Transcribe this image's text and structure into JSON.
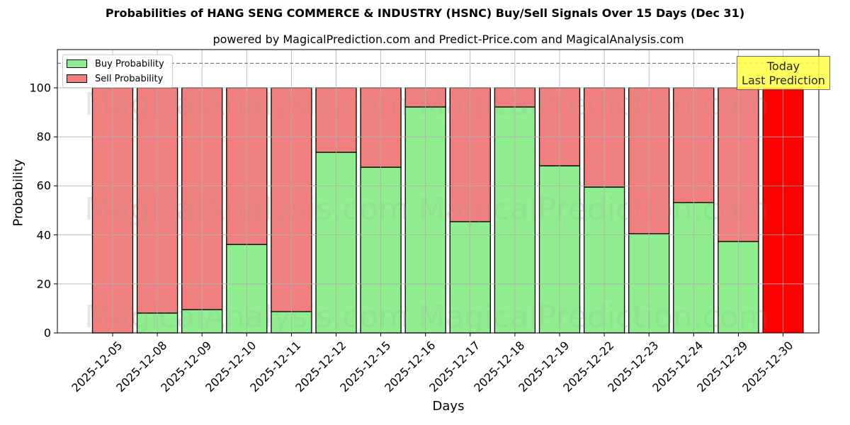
{
  "header": {
    "title": "Probabilities of HANG SENG COMMERCE & INDUSTRY (HSNC) Buy/Sell Signals Over 15 Days (Dec 31)",
    "subtitle": "powered by MagicalPrediction.com and Predict-Price.com and MagicalAnalysis.com"
  },
  "legend": {
    "buy_label": "Buy Probability",
    "sell_label": "Sell Probability"
  },
  "annotation": {
    "line1": "Today",
    "line2": "Last Prediction"
  },
  "watermarks": [
    "MagicalAnalysis.com",
    "MagicalPrediction.com"
  ],
  "colors": {
    "buy": "#90ee90",
    "sell": "#f08080",
    "today": "#ff0000",
    "annotation_bg": "#ffff44",
    "dashed_line": "#808080"
  },
  "chart_data": {
    "type": "bar",
    "stacked": true,
    "title": "Probabilities of HANG SENG COMMERCE & INDUSTRY (HSNC) Buy/Sell Signals Over 15 Days (Dec 31)",
    "subtitle": "powered by MagicalPrediction.com and Predict-Price.com and MagicalAnalysis.com",
    "xlabel": "Days",
    "ylabel": "Probability",
    "ylim": [
      0,
      115
    ],
    "yticks": [
      0,
      20,
      40,
      60,
      80,
      100
    ],
    "grid": true,
    "legend_position": "upper left",
    "reference_line": {
      "y": 110,
      "style": "dashed"
    },
    "categories": [
      "2025-12-05",
      "2025-12-08",
      "2025-12-09",
      "2025-12-10",
      "2025-12-11",
      "2025-12-12",
      "2025-12-15",
      "2025-12-16",
      "2025-12-17",
      "2025-12-18",
      "2025-12-19",
      "2025-12-22",
      "2025-12-23",
      "2025-12-24",
      "2025-12-29",
      "2025-12-30"
    ],
    "series": [
      {
        "name": "Buy Probability",
        "color": "#90ee90",
        "values": [
          0,
          8.1,
          9.5,
          36.1,
          8.7,
          73.7,
          67.6,
          92.2,
          45.4,
          92.2,
          68.2,
          59.5,
          40.5,
          53.2,
          37.3,
          0
        ]
      },
      {
        "name": "Sell Probability",
        "color": "#f08080",
        "values": [
          100,
          91.9,
          90.5,
          63.9,
          91.3,
          26.3,
          32.4,
          7.8,
          54.6,
          7.8,
          31.8,
          40.5,
          59.5,
          46.8,
          62.7,
          100
        ]
      }
    ],
    "highlight": {
      "category": "2025-12-30",
      "color": "#ff0000",
      "label": "Today Last Prediction"
    }
  }
}
